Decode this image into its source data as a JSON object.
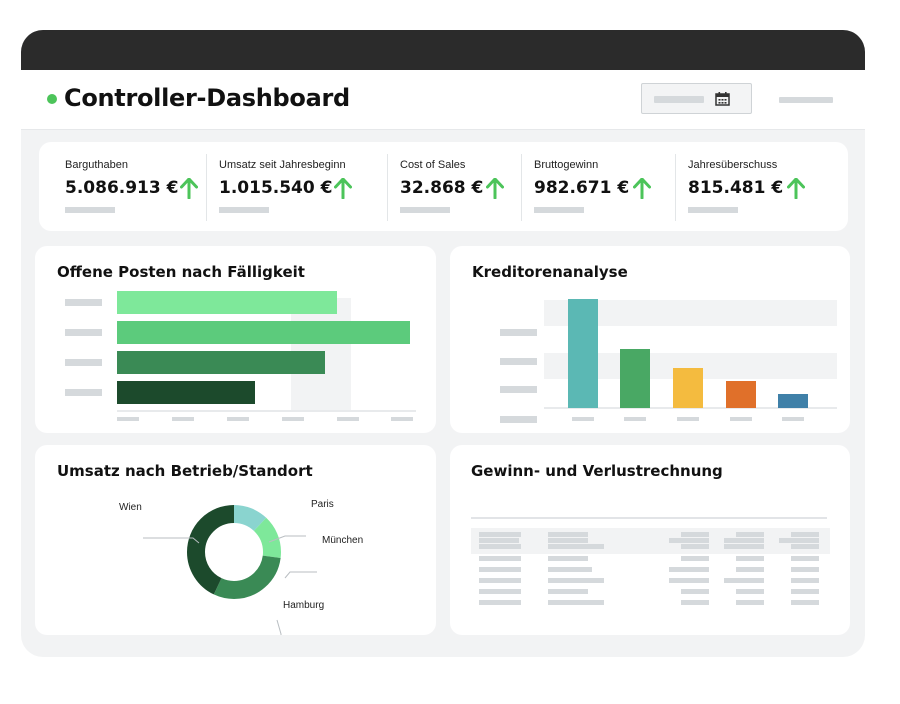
{
  "header": {
    "title": "Controller-Dashboard"
  },
  "kpis": [
    {
      "label": "Barguthaben",
      "value": "5.086.913 €",
      "trend": "up"
    },
    {
      "label": "Umsatz seit Jahresbeginn",
      "value": "1.015.540 €",
      "trend": "up"
    },
    {
      "label": "Cost of Sales",
      "value": "32.868 €",
      "trend": "up"
    },
    {
      "label": "Bruttogewinn",
      "value": "982.671 €",
      "trend": "up"
    },
    {
      "label": "Jahresüberschuss",
      "value": "815.481 €",
      "trend": "up"
    }
  ],
  "colors": {
    "titlebar": "#2b2b2b",
    "background": "#f2f3f4",
    "trend_up": "#4cc45a",
    "placeholder": "#d5d9dc"
  },
  "cards": {
    "open_items": {
      "title": "Offene Posten nach Fälligkeit"
    },
    "creditors": {
      "title": "Kreditorenanalyse"
    },
    "revenue_by_site": {
      "title": "Umsatz nach Betrieb/Standort"
    },
    "pnl": {
      "title": "Gewinn- und Verlustrechnung"
    }
  },
  "chart_data": [
    {
      "type": "bar",
      "orientation": "horizontal",
      "title": "Offene Posten nach Fälligkeit",
      "values": [
        0.75,
        1.0,
        0.71,
        0.47
      ],
      "colors": [
        "#7ee89a",
        "#5ccb7c",
        "#3a8a55",
        "#1c4a2c"
      ]
    },
    {
      "type": "bar",
      "title": "Kreditorenanalyse",
      "values": [
        1.0,
        0.54,
        0.37,
        0.25,
        0.13
      ],
      "colors": [
        "#5bb8b4",
        "#49a864",
        "#f4bb3f",
        "#e0702a",
        "#3f80a8"
      ]
    },
    {
      "type": "pie",
      "title": "Umsatz nach Betrieb/Standort",
      "series": [
        {
          "name": "Paris",
          "value": 12,
          "color": "#8ad4cf"
        },
        {
          "name": "München",
          "value": 15,
          "color": "#7ee89a"
        },
        {
          "name": "Hamburg",
          "value": 30,
          "color": "#3a8a55"
        },
        {
          "name": "Wien",
          "value": 43,
          "color": "#1c4a2c"
        }
      ]
    }
  ]
}
